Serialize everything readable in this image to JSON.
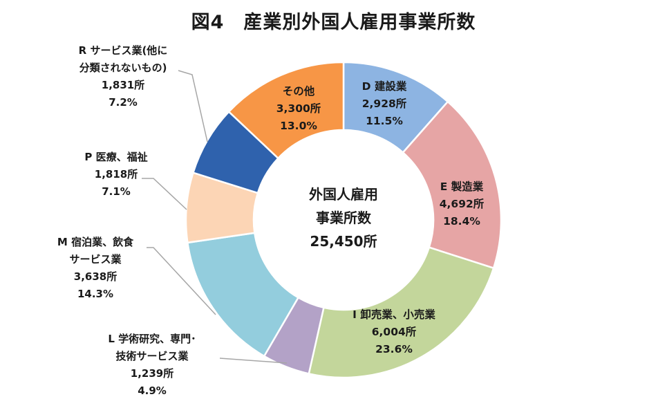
{
  "title": "図4　産業別外国人雇用事業所数",
  "chart_data": {
    "type": "pie",
    "donut": true,
    "center_label": [
      "外国人雇用",
      "事業所数",
      "25,450所"
    ],
    "slices": [
      {
        "key": "D",
        "lines": [
          "D 建設業"
        ],
        "value_text": "2,928所",
        "pct_text": "11.5%",
        "value": 2928,
        "percent": 11.5,
        "color": "#8db4e2",
        "label_place": "inside"
      },
      {
        "key": "E",
        "lines": [
          "E 製造業"
        ],
        "value_text": "4,692所",
        "pct_text": "18.4%",
        "value": 4692,
        "percent": 18.4,
        "color": "#e6a5a5",
        "label_place": "inside"
      },
      {
        "key": "I",
        "lines": [
          "I 卸売業、小売業"
        ],
        "value_text": "6,004所",
        "pct_text": "23.6%",
        "value": 6004,
        "percent": 23.6,
        "color": "#c3d69b",
        "label_place": "inside"
      },
      {
        "key": "L",
        "lines": [
          "L 学術研究、専門･",
          "技術サービス業"
        ],
        "value_text": "1,239所",
        "pct_text": "4.9%",
        "value": 1239,
        "percent": 4.9,
        "color": "#b3a2c7",
        "label_place": "outside"
      },
      {
        "key": "M",
        "lines": [
          "M 宿泊業、飲食",
          "サービス業"
        ],
        "value_text": "3,638所",
        "pct_text": "14.3%",
        "value": 3638,
        "percent": 14.3,
        "color": "#93cddd",
        "label_place": "outside"
      },
      {
        "key": "P",
        "lines": [
          "P 医療、福祉"
        ],
        "value_text": "1,818所",
        "pct_text": "7.1%",
        "value": 1818,
        "percent": 7.1,
        "color": "#fcd5b5",
        "label_place": "outside"
      },
      {
        "key": "R",
        "lines": [
          "R サービス業(他に",
          "分類されないもの)"
        ],
        "value_text": "1,831所",
        "pct_text": "7.2%",
        "value": 1831,
        "percent": 7.2,
        "color": "#2f62ad",
        "label_place": "outside"
      },
      {
        "key": "other",
        "lines": [
          "その他"
        ],
        "value_text": "3,300所",
        "pct_text": "13.0%",
        "value": 3300,
        "percent": 13.0,
        "color": "#f79646",
        "label_place": "inside"
      }
    ]
  }
}
